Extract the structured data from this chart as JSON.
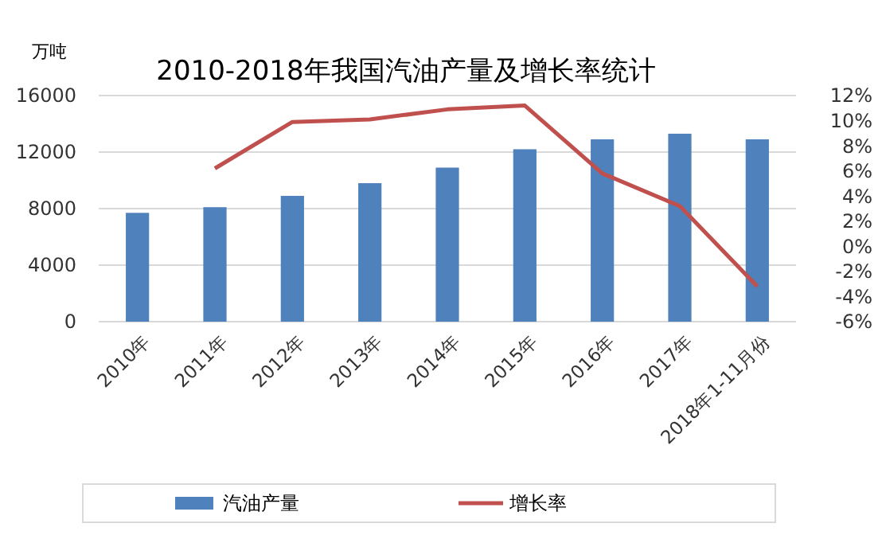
{
  "chart_data": {
    "type": "bar",
    "title": "2010-2018年我国汽油产量及增长率统计",
    "ylabel": "万吨",
    "categories": [
      "2010年",
      "2011年",
      "2012年",
      "2013年",
      "2014年",
      "2015年",
      "2016年",
      "2017年",
      "2018年1-11月份"
    ],
    "series": [
      {
        "name": "汽油产量",
        "color": "#4f81bd",
        "values": [
          7700,
          8100,
          8900,
          9800,
          10900,
          12200,
          12900,
          13300,
          12900
        ]
      },
      {
        "name": "增长率",
        "type": "line",
        "axis": "y2",
        "color": "#c0504d",
        "marker": "none",
        "values": [
          null,
          6.2,
          9.9,
          10.1,
          10.9,
          11.2,
          5.8,
          3.2,
          -3.2
        ]
      }
    ],
    "ylim": [
      0,
      16000
    ],
    "yticks": [
      0,
      4000,
      8000,
      12000,
      16000
    ],
    "y2lim": [
      -6,
      12
    ],
    "y2ticks": [
      {
        "value": -6,
        "label": "-6%"
      },
      {
        "value": -4,
        "label": "-4%"
      },
      {
        "value": -2,
        "label": "-2%"
      },
      {
        "value": 0,
        "label": "0%"
      },
      {
        "value": 2,
        "label": "2%"
      },
      {
        "value": 4,
        "label": "4%"
      },
      {
        "value": 6,
        "label": "6%"
      },
      {
        "value": 8,
        "label": "8%"
      },
      {
        "value": 10,
        "label": "10%"
      },
      {
        "value": 12,
        "label": "12%"
      }
    ],
    "grid": "y",
    "legend": "bottom"
  }
}
